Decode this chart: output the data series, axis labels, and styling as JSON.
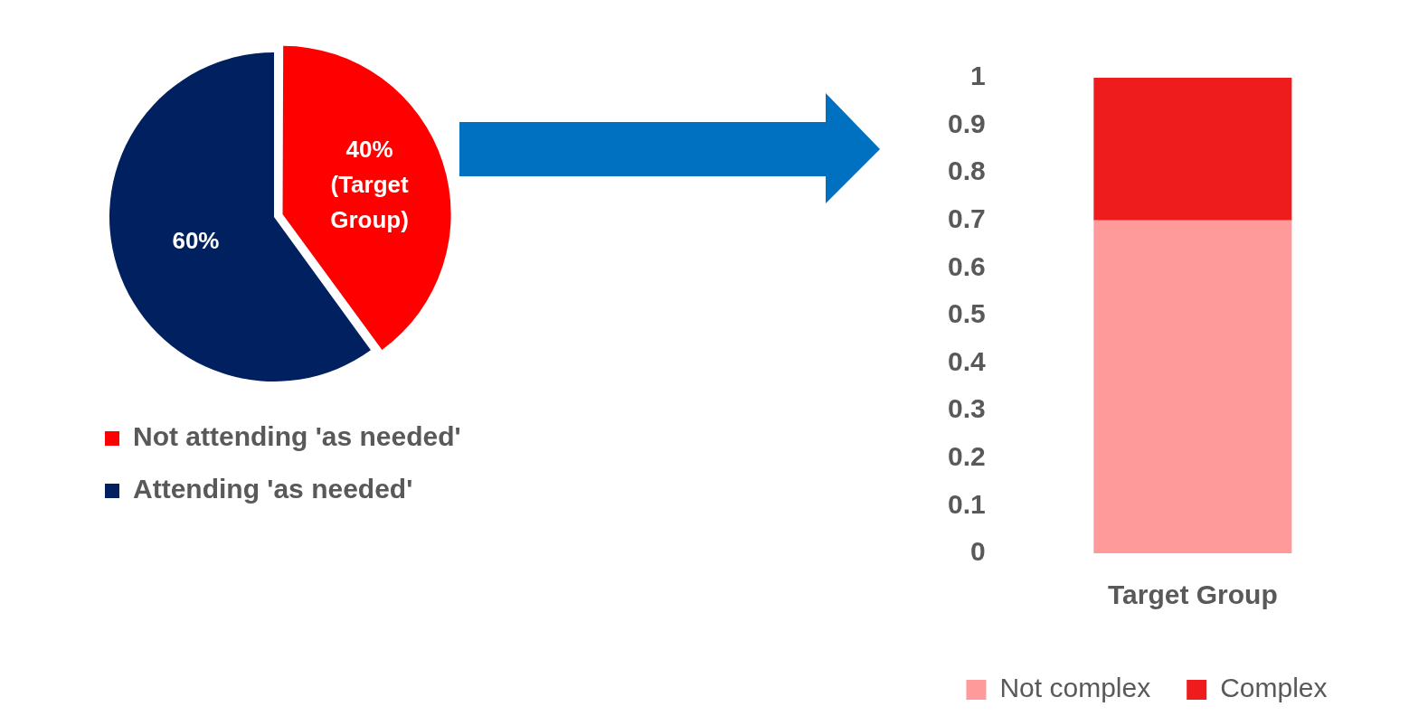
{
  "chart_data": [
    {
      "type": "pie",
      "categories": [
        "Not attending 'as needed'",
        "Attending 'as needed'"
      ],
      "values": [
        40,
        60
      ],
      "colors": [
        "#ff0000",
        "#002060"
      ],
      "value_labels": [
        "40% (Target Group)",
        "60%"
      ],
      "legend": "bottom left"
    },
    {
      "type": "bar",
      "stacked": true,
      "categories": [
        "Target Group"
      ],
      "series": [
        {
          "name": "Not complex",
          "color": "#ff9a9a",
          "values": [
            0.7
          ]
        },
        {
          "name": "Complex",
          "color": "#ee1c1c",
          "values": [
            0.3
          ]
        }
      ],
      "ylim": [
        0,
        1
      ],
      "yticks": [
        0,
        0.1,
        0.2,
        0.3,
        0.4,
        0.5,
        0.6,
        0.7,
        0.8,
        0.9,
        1
      ],
      "grid": false,
      "legend": "bottom"
    }
  ]
}
